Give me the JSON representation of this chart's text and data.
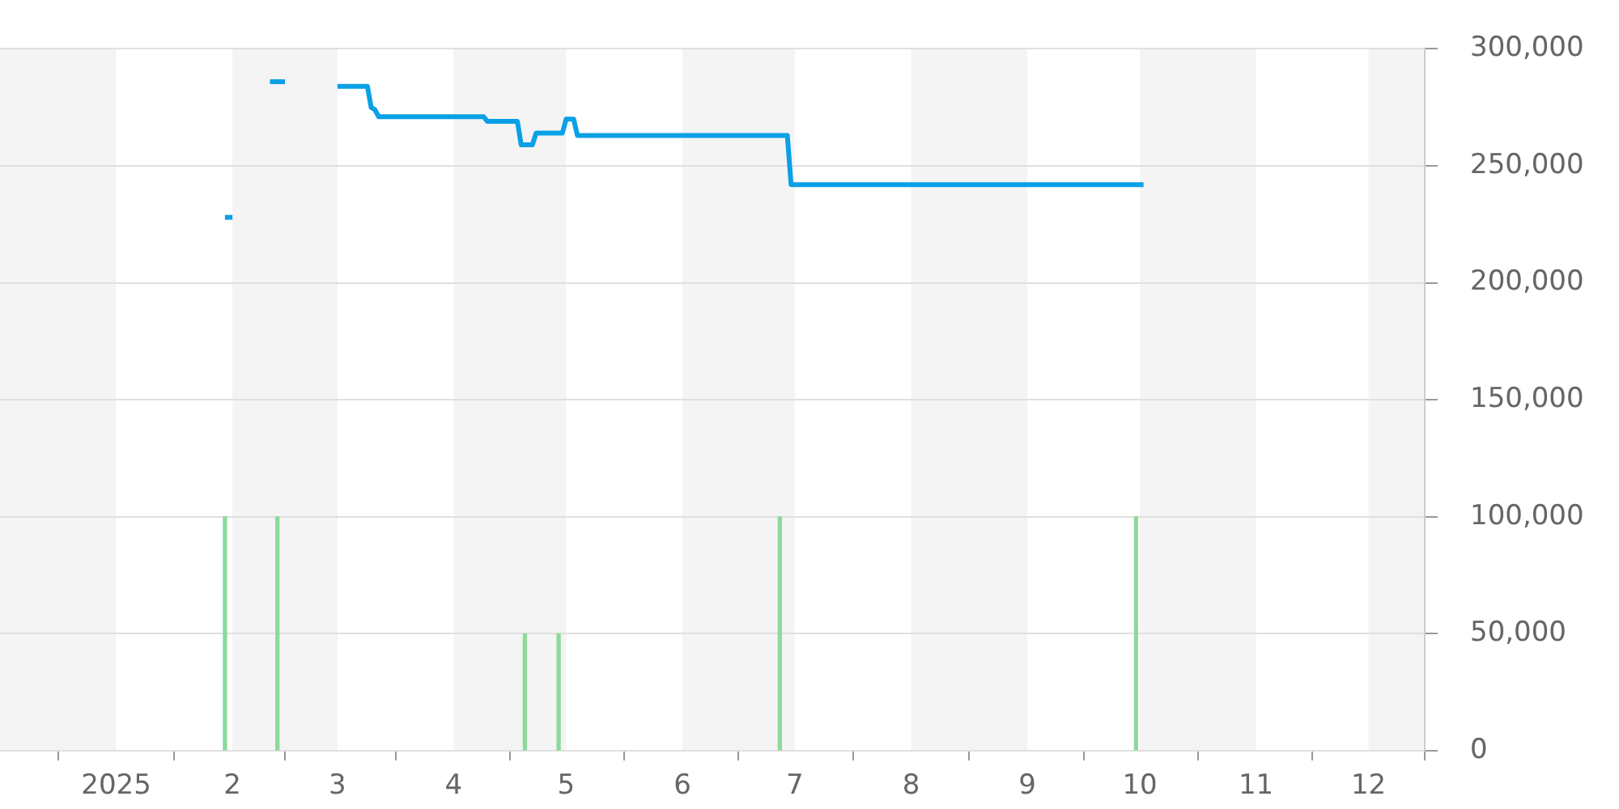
{
  "chart_data": {
    "type": "line",
    "xlim": [
      "2024-12-01",
      "2025-12-16"
    ],
    "xticks": [
      {
        "value": "2025-01-01",
        "label": "2025"
      },
      {
        "value": "2025-02-01",
        "label": "2"
      },
      {
        "value": "2025-03-01",
        "label": "3"
      },
      {
        "value": "2025-04-01",
        "label": "4"
      },
      {
        "value": "2025-05-01",
        "label": "5"
      },
      {
        "value": "2025-06-01",
        "label": "6"
      },
      {
        "value": "2025-07-01",
        "label": "7"
      },
      {
        "value": "2025-08-01",
        "label": "8"
      },
      {
        "value": "2025-09-01",
        "label": "9"
      },
      {
        "value": "2025-10-01",
        "label": "10"
      },
      {
        "value": "2025-11-01",
        "label": "11"
      },
      {
        "value": "2025-12-01",
        "label": "12"
      }
    ],
    "ylim": [
      0,
      300000
    ],
    "yticks": [
      0,
      {
        "value": 50000,
        "label": "50,000"
      },
      {
        "value": 100000,
        "label": "100,000"
      },
      {
        "value": 150000,
        "label": "150,000"
      },
      {
        "value": 200000,
        "label": "200,000"
      },
      {
        "value": 250000,
        "label": "250,000"
      },
      {
        "value": 300000,
        "label": "300,000"
      }
    ],
    "grid": "y",
    "legend": false,
    "marker": "none",
    "bands": [
      {
        "axis": "x",
        "from": "2024-12-01",
        "to": "2025-01-01",
        "color": "#f4f4f4"
      },
      {
        "axis": "x",
        "from": "2025-02-01",
        "to": "2025-03-01",
        "color": "#f4f4f4"
      },
      {
        "axis": "x",
        "from": "2025-04-01",
        "to": "2025-05-01",
        "color": "#f4f4f4"
      },
      {
        "axis": "x",
        "from": "2025-06-01",
        "to": "2025-07-01",
        "color": "#f4f4f4"
      },
      {
        "axis": "x",
        "from": "2025-08-01",
        "to": "2025-09-01",
        "color": "#f4f4f4"
      },
      {
        "axis": "x",
        "from": "2025-10-01",
        "to": "2025-11-01",
        "color": "#f4f4f4"
      },
      {
        "axis": "x",
        "from": "2025-12-01",
        "to": "2025-12-16",
        "color": "#f4f4f4"
      }
    ],
    "series": [
      {
        "type": "bar",
        "color": "#8ed99a",
        "x": [
          "2025-01-30",
          "2025-02-13",
          "2025-04-20",
          "2025-04-29",
          "2025-06-27",
          "2025-09-30"
        ],
        "values": [
          100000,
          100000,
          50000,
          50000,
          100000,
          100000
        ]
      },
      {
        "color": "#0aa0e6",
        "x": [
          "2025-01-30",
          "2025-02-01"
        ],
        "values": [
          228000,
          228000
        ]
      },
      {
        "color": "#0aa0e6",
        "x": [
          "2025-02-11",
          "2025-02-15",
          "2025-02-22",
          "2025-03-01",
          "2025-03-09",
          "2025-03-10",
          "2025-03-11",
          "2025-03-12",
          "2025-04-09",
          "2025-04-10",
          "2025-04-18",
          "2025-04-19",
          "2025-04-22",
          "2025-04-23",
          "2025-04-30",
          "2025-05-01",
          "2025-05-03",
          "2025-05-04",
          "2025-06-29",
          "2025-06-30",
          "2025-10-02"
        ],
        "values": [
          286000,
          286000,
          null,
          284000,
          284000,
          275000,
          274000,
          271000,
          271000,
          269000,
          269000,
          259000,
          259000,
          264000,
          264000,
          270000,
          270000,
          263000,
          263000,
          242000,
          242000
        ]
      }
    ]
  }
}
